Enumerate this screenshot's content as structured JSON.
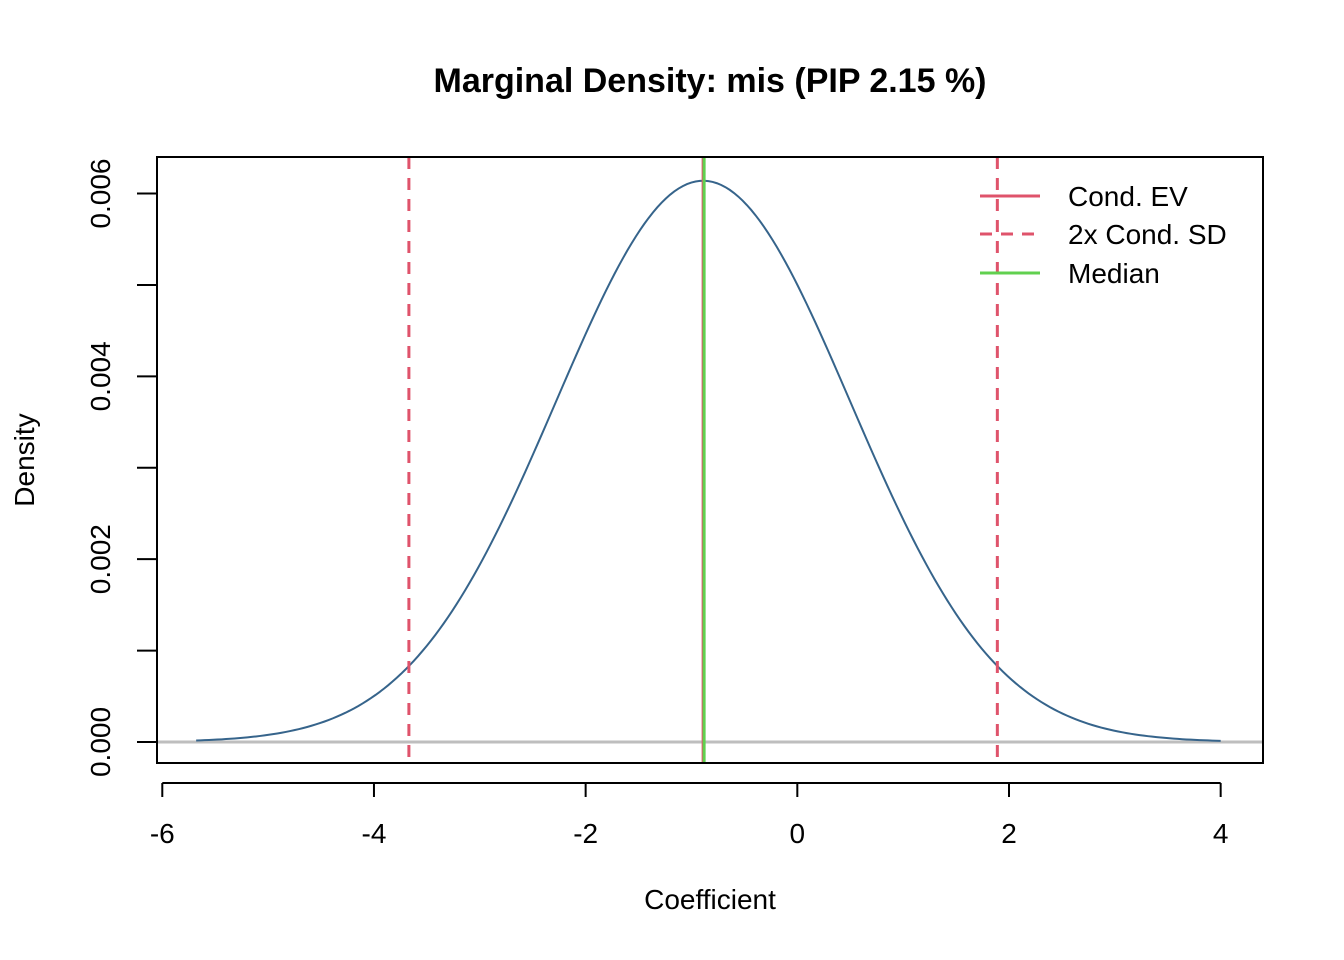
{
  "chart_data": {
    "type": "line",
    "title": "Marginal Density: mis (PIP 2.15 %)",
    "xlabel": "Coefficient",
    "ylabel": "Density",
    "xlim": [
      -6.05,
      4.4
    ],
    "ylim": [
      -0.00023,
      0.0064
    ],
    "x_ticks": [
      -6,
      -4,
      -2,
      0,
      2,
      4
    ],
    "x_tick_labels": [
      "-6",
      "-4",
      "-2",
      "0",
      "2",
      "4"
    ],
    "y_ticks": [
      0.0,
      0.001,
      0.002,
      0.003,
      0.004,
      0.005,
      0.006
    ],
    "y_tick_labels": [
      "0.000",
      "",
      "0.002",
      "",
      "0.004",
      "",
      "0.006"
    ],
    "series": [
      {
        "name": "",
        "color": "#36648B",
        "x_range": [
          -5.68,
          4.0
        ],
        "mean": -0.89,
        "sd": 1.39,
        "peak": 0.00614
      }
    ],
    "cond_ev": -0.89,
    "cond_sd_bounds": [
      -3.67,
      1.89
    ],
    "median": -0.89,
    "zero_line": 0,
    "colors": {
      "density": "#36648B",
      "ev": "#DF536B",
      "sd": "#DF536B",
      "median": "#61D04F",
      "zero": "#BEBEBE"
    },
    "legend": {
      "position": "top-right",
      "items": [
        {
          "label": "Cond. EV",
          "color": "#DF536B",
          "style": "solid"
        },
        {
          "label": "2x Cond. SD",
          "color": "#DF536B",
          "style": "dashed"
        },
        {
          "label": "Median",
          "color": "#61D04F",
          "style": "solid"
        }
      ]
    }
  }
}
